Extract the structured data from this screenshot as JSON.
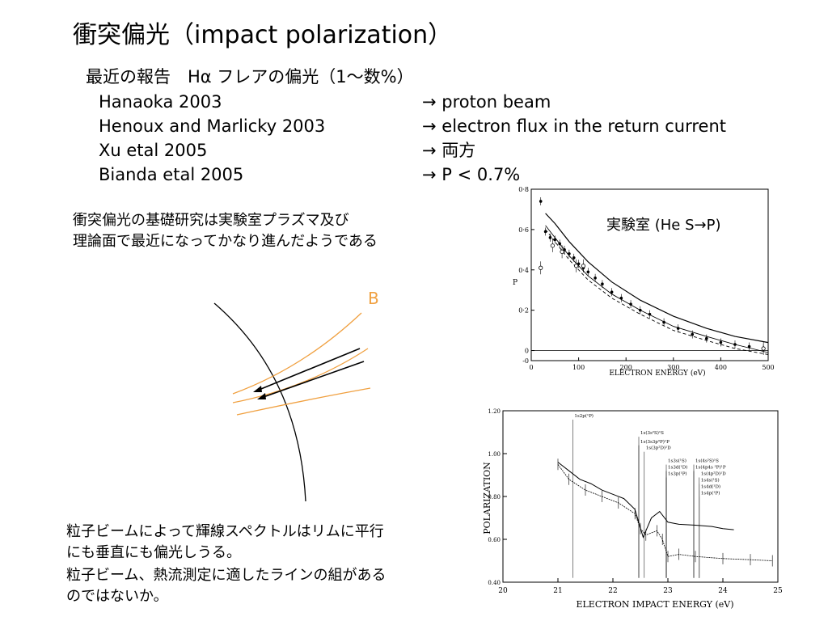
{
  "slide": {
    "title": "衝突偏光（impact polarization）",
    "report_heading": "最近の報告　Hα フレアの偏光（1～数%）",
    "reports": [
      {
        "author": "Hanaoka 2003",
        "result": "proton beam"
      },
      {
        "author": "Henoux and Marlicky 2003",
        "result": "electron flux in the return current"
      },
      {
        "author": "Xu etal 2005",
        "result": "両方"
      },
      {
        "author": "Bianda etal 2005",
        "result": "P < 0.7%"
      }
    ],
    "note_lab": [
      "衝突偏光の基礎研究は実験室プラズマ及び",
      "理論面で最近になってかなり進んだようである"
    ],
    "note_beam": [
      "粒子ビームによって輝線スペクトルはリムに平行",
      "にも垂直にも偏光しうる。",
      "粒子ビーム、熱流測定に適したラインの組がある",
      "のではないか。"
    ],
    "field_label": "B",
    "lab_label": "実験室 (He S",
    "lab_label_end": "P)",
    "arrow_symbol": "→",
    "colors": {
      "field_lines": "#f0a040",
      "field_label": "#f0a040"
    }
  },
  "chart_data": [
    {
      "type": "line",
      "xlabel": "ELECTRON ENERGY (eV)",
      "ylabel": "P",
      "xlim": [
        0,
        500
      ],
      "ylim": [
        -0.05,
        0.8
      ],
      "x_ticks": [
        "0",
        "100",
        "200",
        "300",
        "400",
        "500"
      ],
      "y_ticks": [
        "-0",
        "0",
        "0·2",
        "0·4",
        "0·6",
        "0·8"
      ],
      "series": [
        {
          "x": [
            30,
            50,
            80,
            120,
            170,
            230,
            300,
            370,
            430,
            500
          ],
          "y": [
            0.68,
            0.63,
            0.54,
            0.44,
            0.34,
            0.25,
            0.17,
            0.11,
            0.07,
            0.04
          ]
        },
        {
          "x": [
            30,
            50,
            80,
            120,
            170,
            230,
            300,
            370,
            430,
            500
          ],
          "y": [
            0.62,
            0.56,
            0.47,
            0.37,
            0.28,
            0.2,
            0.12,
            0.07,
            0.03,
            -0.01
          ]
        },
        {
          "x": [
            30,
            50,
            80,
            120,
            170,
            230,
            300,
            370,
            430,
            500
          ],
          "y": [
            0.6,
            0.54,
            0.45,
            0.35,
            0.26,
            0.18,
            0.1,
            0.05,
            0.01,
            -0.02
          ]
        },
        {
          "x": [
            20,
            30,
            40,
            50,
            60,
            70,
            80,
            90,
            100,
            110,
            120,
            135,
            150,
            170,
            190,
            210,
            230,
            250,
            280,
            310,
            340,
            370,
            400,
            430,
            460,
            490
          ],
          "y": [
            0.74,
            0.59,
            0.56,
            0.55,
            0.53,
            0.5,
            0.48,
            0.46,
            0.43,
            0.41,
            0.39,
            0.36,
            0.33,
            0.29,
            0.26,
            0.23,
            0.2,
            0.18,
            0.14,
            0.11,
            0.08,
            0.06,
            0.04,
            0.03,
            0.02,
            0.01
          ]
        },
        {
          "x": [
            20,
            45,
            65,
            95,
            110,
            490
          ],
          "y": [
            0.41,
            0.52,
            0.49,
            0.42,
            0.42,
            0.01
          ]
        }
      ]
    },
    {
      "type": "line",
      "xlabel": "ELECTRON IMPACT ENERGY (eV)",
      "ylabel": "POLARIZATION",
      "xlim": [
        20,
        25
      ],
      "ylim": [
        0.4,
        1.2
      ],
      "x_ticks": [
        "20",
        "21",
        "22",
        "23",
        "24",
        "25"
      ],
      "y_ticks": [
        "0.40",
        "0.60",
        "0.80",
        "1.00",
        "1.20"
      ],
      "annotations": [
        "1s2p(¹P)",
        "1s(3s²S)¹S",
        "1s(3s3p³P)¹P",
        "1s(3p²D)¹D",
        "1s3s(¹S)",
        "1s3d(¹D)",
        "1s3p(¹P)",
        "1s(4s²S)¹S",
        "1s(4p4s ³P)¹P",
        "1s(4p²D)¹D",
        "1s4s(¹S)",
        "1s4d(¹D)",
        "1s4p(¹P)"
      ],
      "series": [
        {
          "x": [
            21.0,
            21.2,
            21.4,
            21.6,
            21.8,
            22.0,
            22.2,
            22.4,
            22.55,
            22.7,
            22.85,
            23.0,
            23.2,
            23.5,
            23.8,
            24.0,
            24.2
          ],
          "y": [
            0.96,
            0.92,
            0.88,
            0.86,
            0.83,
            0.81,
            0.79,
            0.74,
            0.61,
            0.7,
            0.73,
            0.68,
            0.67,
            0.666,
            0.66,
            0.65,
            0.645
          ]
        },
        {
          "x": [
            21.0,
            21.2,
            21.5,
            21.8,
            22.1,
            22.4,
            22.5,
            22.6,
            22.8,
            22.9,
            23.0,
            23.2,
            23.5,
            24.0,
            24.5,
            24.9
          ],
          "y": [
            0.95,
            0.88,
            0.83,
            0.8,
            0.77,
            0.72,
            0.65,
            0.62,
            0.64,
            0.6,
            0.52,
            0.53,
            0.52,
            0.51,
            0.505,
            0.5
          ]
        }
      ]
    }
  ]
}
